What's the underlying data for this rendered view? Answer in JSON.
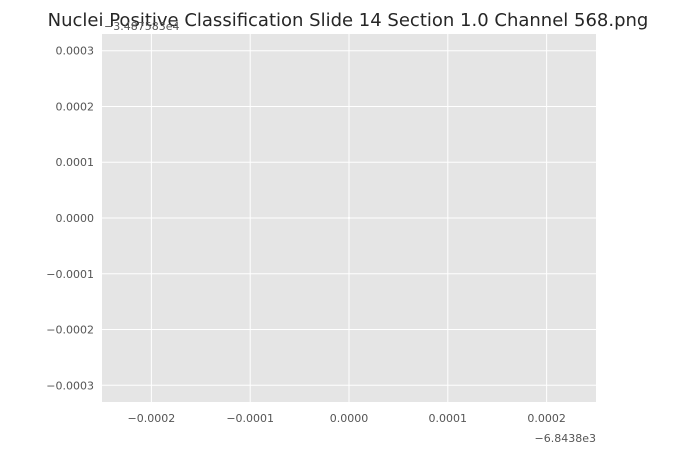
{
  "chart_data": {
    "type": "scatter",
    "title": "Nuclei Positive Classification Slide  14 Section 1.0 Channel 568.png",
    "xlabel": "",
    "ylabel": "",
    "x_offset_label": "−6.8438e3",
    "y_offset_label": "−3.487583e4",
    "xlim": [
      -0.00025,
      0.00025
    ],
    "ylim": [
      -0.00033,
      0.00033
    ],
    "x_ticks": [
      -0.0002,
      -0.0001,
      0.0,
      0.0001,
      0.0002
    ],
    "x_tick_labels": [
      "−0.0002",
      "−0.0001",
      "0.0000",
      "0.0001",
      "0.0002"
    ],
    "y_ticks": [
      0.0003,
      0.0002,
      0.0001,
      0.0,
      -0.0001,
      -0.0002,
      -0.0003
    ],
    "y_tick_labels": [
      "0.0003",
      "0.0002",
      "0.0001",
      "0.0000",
      "−0.0001",
      "−0.0002",
      "−0.0003"
    ],
    "grid": true,
    "background_color": "#e5e5e5",
    "grid_color": "#ffffff",
    "points": [
      {
        "x": 0.0,
        "y": 0.0,
        "color": "#ffffff"
      }
    ]
  }
}
